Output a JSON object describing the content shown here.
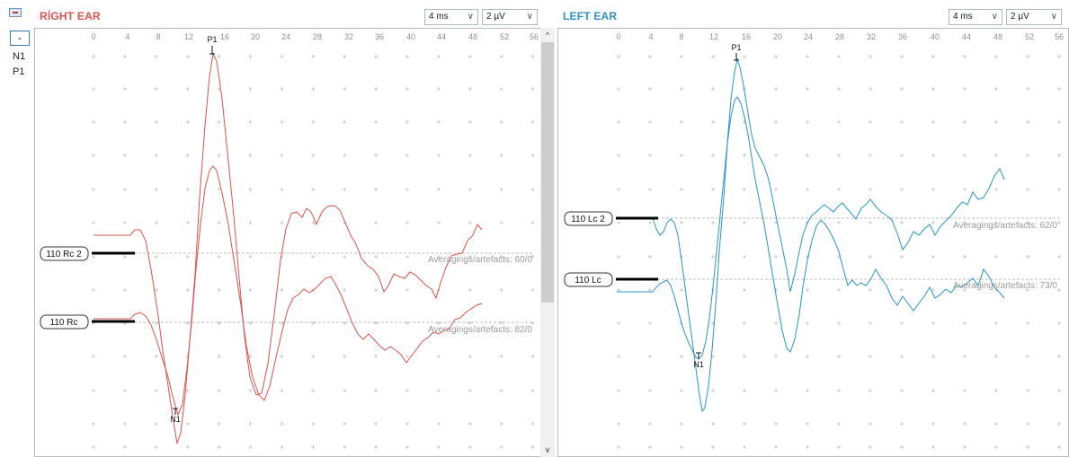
{
  "toolbar": {
    "minus_label": "-",
    "markers": [
      "N1",
      "P1"
    ],
    "icon": "waveform-display-icon"
  },
  "right_ear": {
    "title": "RİGHT EAR",
    "time_scale": "4 ms",
    "amp_scale": "2 µV",
    "color": "#d9534f",
    "ticks": [
      "0",
      "4",
      "8",
      "12",
      "16",
      "20",
      "24",
      "28",
      "32",
      "36",
      "40",
      "44",
      "48",
      "52",
      "56"
    ],
    "traces": [
      {
        "label": "110 Rc 2",
        "status": "Averagings/artefacts: 60/0"
      },
      {
        "label": "110 Rc",
        "status": "Averagings/artefacts: 82/0"
      }
    ],
    "peaks": {
      "p1": "P1",
      "n1": "N1"
    }
  },
  "left_ear": {
    "title": "LEFT EAR",
    "time_scale": "4 ms",
    "amp_scale": "2 µV",
    "color": "#2a93c5",
    "ticks": [
      "0",
      "4",
      "8",
      "12",
      "16",
      "20",
      "24",
      "28",
      "32",
      "36",
      "40",
      "44",
      "48",
      "52",
      "56"
    ],
    "traces": [
      {
        "label": "110 Lc 2",
        "status": "Averagings/artefacts: 62/0"
      },
      {
        "label": "110 Lc",
        "status": "Averagings/artefacts: 73/0"
      }
    ],
    "peaks": {
      "p1": "P1",
      "n1": "N1"
    }
  },
  "icons": {
    "dropdown": "chevron-down-icon",
    "scroll_up": "chevron-up-icon",
    "scroll_down": "chevron-down-icon"
  }
}
